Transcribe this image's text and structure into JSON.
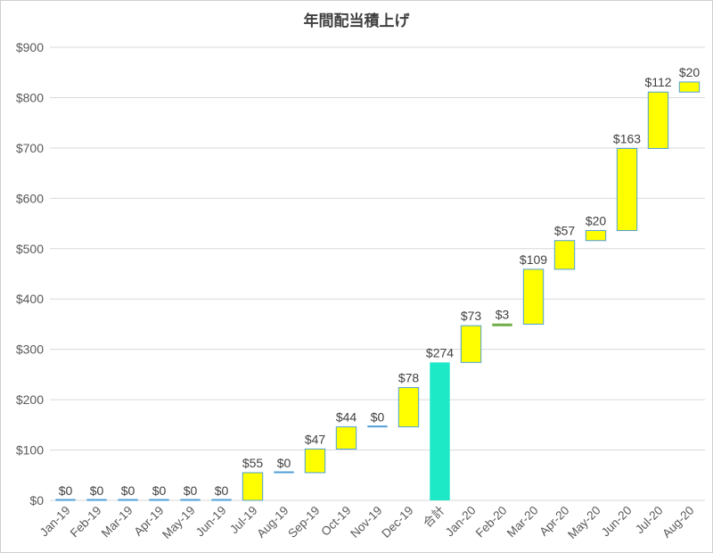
{
  "chart_data": {
    "type": "waterfall",
    "title": "年間配当積上げ",
    "xlabel": "",
    "ylabel": "",
    "ylim": [
      0,
      900
    ],
    "y_ticks": [
      "$0",
      "$100",
      "$200",
      "$300",
      "$400",
      "$500",
      "$600",
      "$700",
      "$800",
      "$900"
    ],
    "y_tick_values": [
      0,
      100,
      200,
      300,
      400,
      500,
      600,
      700,
      800,
      900
    ],
    "grid": true,
    "legend": "none",
    "categories": [
      "Jan-19",
      "Feb-19",
      "Mar-19",
      "Apr-19",
      "May-19",
      "Jun-19",
      "Jul-19",
      "Aug-19",
      "Sep-19",
      "Oct-19",
      "Nov-19",
      "Dec-19",
      "合計",
      "Jan-20",
      "Feb-20",
      "Mar-20",
      "Apr-20",
      "May-20",
      "Jun-20",
      "Jul-20",
      "Aug-20"
    ],
    "values": [
      0,
      0,
      0,
      0,
      0,
      0,
      55,
      0,
      47,
      44,
      0,
      78,
      274,
      73,
      3,
      109,
      57,
      20,
      163,
      112,
      20
    ],
    "data_labels": [
      "$0",
      "$0",
      "$0",
      "$0",
      "$0",
      "$0",
      "$55",
      "$0",
      "$47",
      "$44",
      "$0",
      "$78",
      "$274",
      "$73",
      "$3",
      "$109",
      "$57",
      "$20",
      "$163",
      "$112",
      "$20"
    ],
    "kinds": [
      "inc",
      "inc",
      "inc",
      "inc",
      "inc",
      "inc",
      "inc",
      "inc",
      "inc",
      "inc",
      "inc",
      "inc",
      "total",
      "inc",
      "inc",
      "inc",
      "inc",
      "inc",
      "inc",
      "inc",
      "inc"
    ],
    "colors": {
      "increase_fill": "#ffff00",
      "increase_border": "#4f9fd8",
      "total_fill": "#1de9c6",
      "zero_line": "#4f9fd8",
      "small_line": "#70ad47",
      "gridline": "#d9d9d9"
    }
  }
}
